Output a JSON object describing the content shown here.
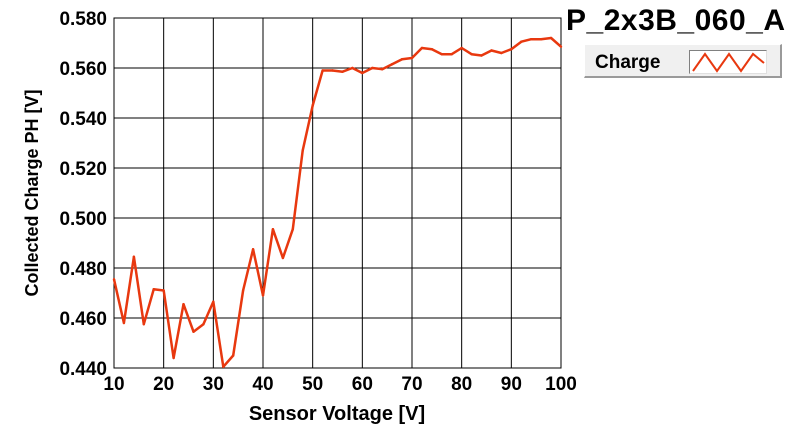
{
  "chart_data": {
    "type": "line",
    "title": "P_2x3B_060_A",
    "xlabel": "Sensor Voltage [V]",
    "ylabel": "Collected Charge PH [V]",
    "xlim": [
      10,
      100
    ],
    "ylim": [
      0.44,
      0.58
    ],
    "x_ticks": [
      "10",
      "20",
      "30",
      "40",
      "50",
      "60",
      "70",
      "80",
      "90",
      "100"
    ],
    "y_ticks": [
      "0.440",
      "0.460",
      "0.480",
      "0.500",
      "0.520",
      "0.540",
      "0.560",
      "0.580"
    ],
    "grid": true,
    "legend": "top-right",
    "series": [
      {
        "name": "Charge",
        "color": "#e8380f",
        "x": [
          10,
          12,
          14,
          16,
          18,
          20,
          22,
          24,
          26,
          28,
          30,
          32,
          34,
          36,
          38,
          40,
          42,
          44,
          46,
          48,
          50,
          52,
          54,
          56,
          58,
          60,
          62,
          64,
          66,
          68,
          70,
          72,
          74,
          76,
          78,
          80,
          82,
          84,
          86,
          88,
          90,
          92,
          94,
          96,
          98,
          100
        ],
        "y": [
          0.4755,
          0.458,
          0.4845,
          0.4575,
          0.4715,
          0.471,
          0.444,
          0.4655,
          0.4545,
          0.4575,
          0.4665,
          0.4405,
          0.445,
          0.471,
          0.4875,
          0.469,
          0.4955,
          0.484,
          0.4955,
          0.527,
          0.545,
          0.559,
          0.559,
          0.5585,
          0.56,
          0.558,
          0.56,
          0.5595,
          0.5615,
          0.5635,
          0.564,
          0.568,
          0.5675,
          0.5655,
          0.5655,
          0.568,
          0.5655,
          0.565,
          0.567,
          0.566,
          0.5675,
          0.5705,
          0.5715,
          0.5715,
          0.572,
          0.5685
        ]
      }
    ]
  }
}
